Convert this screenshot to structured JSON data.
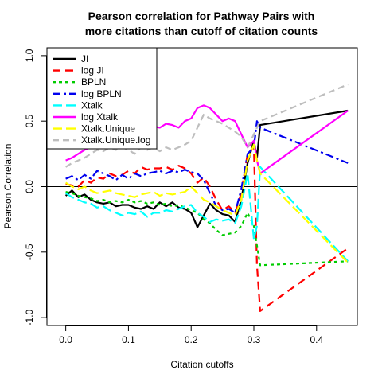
{
  "chart_data": {
    "type": "line",
    "title": [
      "Pearson correlation for Pathway Pairs with",
      "more citations than cutoff of citation counts"
    ],
    "xlabel": "Citation cutoffs",
    "ylabel": "Pearson Correlation",
    "xlim": [
      -0.03,
      0.465
    ],
    "ylim": [
      -1.06,
      1.06
    ],
    "xticks": [
      0.0,
      0.1,
      0.2,
      0.3,
      0.4
    ],
    "xtick_labels": [
      "0.0",
      "0.1",
      "0.2",
      "0.3",
      "0.4"
    ],
    "yticks": [
      -1.0,
      -0.5,
      0.0,
      0.5,
      1.0
    ],
    "ytick_labels": [
      "-1.0",
      "-0.5",
      "0.0",
      "0.5",
      "1.0"
    ],
    "hline": 0,
    "legend_position": "top-left",
    "series": [
      {
        "name": "JI",
        "color": "#000000",
        "dash": "solid",
        "width": 2.2,
        "x": [
          0.0,
          0.01,
          0.02,
          0.03,
          0.04,
          0.05,
          0.06,
          0.07,
          0.08,
          0.09,
          0.1,
          0.11,
          0.12,
          0.13,
          0.14,
          0.15,
          0.16,
          0.17,
          0.18,
          0.19,
          0.2,
          0.21,
          0.22,
          0.23,
          0.24,
          0.25,
          0.26,
          0.27,
          0.28,
          0.29,
          0.3,
          0.305,
          0.31,
          0.45
        ],
        "y": [
          -0.07,
          -0.03,
          -0.08,
          -0.06,
          -0.1,
          -0.12,
          -0.13,
          -0.12,
          -0.15,
          -0.14,
          -0.14,
          -0.16,
          -0.17,
          -0.15,
          -0.17,
          -0.12,
          -0.15,
          -0.12,
          -0.16,
          -0.17,
          -0.2,
          -0.31,
          -0.22,
          -0.13,
          -0.18,
          -0.21,
          -0.22,
          -0.27,
          -0.1,
          0.18,
          0.35,
          0.22,
          0.47,
          0.58
        ]
      },
      {
        "name": "log JI",
        "color": "#ff0000",
        "dash": "10,6",
        "width": 2.2,
        "x": [
          0.0,
          0.01,
          0.02,
          0.03,
          0.04,
          0.05,
          0.06,
          0.07,
          0.08,
          0.09,
          0.1,
          0.11,
          0.12,
          0.13,
          0.14,
          0.15,
          0.16,
          0.17,
          0.18,
          0.19,
          0.2,
          0.21,
          0.22,
          0.23,
          0.24,
          0.25,
          0.26,
          0.27,
          0.28,
          0.29,
          0.3,
          0.305,
          0.31,
          0.45
        ],
        "y": [
          0.02,
          0.01,
          0.0,
          0.05,
          0.03,
          0.07,
          0.06,
          0.1,
          0.08,
          0.09,
          0.12,
          0.1,
          0.15,
          0.13,
          0.14,
          0.14,
          0.15,
          0.13,
          0.16,
          0.14,
          0.1,
          0.03,
          0.07,
          0.0,
          -0.1,
          -0.18,
          -0.15,
          -0.2,
          -0.05,
          0.25,
          0.3,
          -0.6,
          -0.95,
          -0.47
        ]
      },
      {
        "name": "BPLN",
        "color": "#00cc00",
        "dash": "4,4",
        "width": 2.2,
        "x": [
          0.0,
          0.01,
          0.02,
          0.03,
          0.04,
          0.05,
          0.06,
          0.07,
          0.08,
          0.09,
          0.1,
          0.11,
          0.12,
          0.13,
          0.14,
          0.15,
          0.16,
          0.17,
          0.18,
          0.19,
          0.2,
          0.21,
          0.22,
          0.23,
          0.24,
          0.25,
          0.26,
          0.27,
          0.28,
          0.29,
          0.3,
          0.305,
          0.31,
          0.45
        ],
        "y": [
          -0.04,
          -0.05,
          -0.07,
          -0.08,
          -0.09,
          -0.11,
          -0.1,
          -0.12,
          -0.11,
          -0.12,
          -0.1,
          -0.12,
          -0.11,
          -0.13,
          -0.12,
          -0.14,
          -0.13,
          -0.15,
          -0.14,
          -0.16,
          -0.18,
          -0.2,
          -0.25,
          -0.28,
          -0.33,
          -0.37,
          -0.36,
          -0.35,
          -0.3,
          -0.2,
          -0.3,
          -0.45,
          -0.6,
          -0.57
        ]
      },
      {
        "name": "log BPLN",
        "color": "#0000ee",
        "dash": "10,4,3,4",
        "width": 2.2,
        "x": [
          0.0,
          0.01,
          0.02,
          0.03,
          0.04,
          0.05,
          0.06,
          0.07,
          0.08,
          0.09,
          0.1,
          0.11,
          0.12,
          0.13,
          0.14,
          0.15,
          0.16,
          0.17,
          0.18,
          0.19,
          0.2,
          0.21,
          0.22,
          0.23,
          0.24,
          0.25,
          0.26,
          0.27,
          0.28,
          0.29,
          0.3,
          0.305,
          0.31,
          0.45
        ],
        "y": [
          0.06,
          0.08,
          0.05,
          0.09,
          0.06,
          0.12,
          0.1,
          0.08,
          0.05,
          0.09,
          0.06,
          0.1,
          0.08,
          0.1,
          0.11,
          0.12,
          0.1,
          0.12,
          0.11,
          0.13,
          0.11,
          0.1,
          0.05,
          -0.05,
          -0.15,
          -0.18,
          -0.17,
          -0.2,
          -0.02,
          0.25,
          0.3,
          0.5,
          0.45,
          0.18
        ]
      },
      {
        "name": "Xtalk",
        "color": "#00ffff",
        "dash": "12,5",
        "width": 2.2,
        "x": [
          0.0,
          0.01,
          0.02,
          0.03,
          0.04,
          0.05,
          0.06,
          0.07,
          0.08,
          0.09,
          0.1,
          0.11,
          0.12,
          0.13,
          0.14,
          0.15,
          0.16,
          0.17,
          0.18,
          0.19,
          0.2,
          0.21,
          0.22,
          0.23,
          0.24,
          0.25,
          0.26,
          0.27,
          0.28,
          0.29,
          0.3,
          0.305,
          0.31,
          0.45
        ],
        "y": [
          -0.05,
          -0.08,
          -0.1,
          -0.12,
          -0.13,
          -0.16,
          -0.15,
          -0.18,
          -0.2,
          -0.22,
          -0.2,
          -0.21,
          -0.19,
          -0.23,
          -0.2,
          -0.2,
          -0.18,
          -0.19,
          -0.17,
          -0.15,
          -0.14,
          -0.2,
          -0.23,
          -0.27,
          -0.25,
          -0.26,
          -0.25,
          -0.28,
          -0.15,
          0.1,
          -0.4,
          -0.3,
          0.15,
          -0.57
        ]
      },
      {
        "name": "log Xtalk",
        "color": "#ff00ff",
        "dash": "solid",
        "width": 2.2,
        "x": [
          0.0,
          0.01,
          0.02,
          0.03,
          0.04,
          0.05,
          0.06,
          0.07,
          0.08,
          0.09,
          0.1,
          0.11,
          0.12,
          0.13,
          0.14,
          0.15,
          0.16,
          0.17,
          0.18,
          0.19,
          0.2,
          0.21,
          0.22,
          0.23,
          0.24,
          0.25,
          0.26,
          0.27,
          0.28,
          0.29,
          0.3,
          0.305,
          0.31,
          0.45
        ],
        "y": [
          0.2,
          0.22,
          0.25,
          0.28,
          0.3,
          0.33,
          0.35,
          0.38,
          0.4,
          0.42,
          0.44,
          0.45,
          0.4,
          0.42,
          0.46,
          0.45,
          0.48,
          0.47,
          0.45,
          0.5,
          0.52,
          0.6,
          0.62,
          0.6,
          0.55,
          0.5,
          0.52,
          0.5,
          0.4,
          0.3,
          0.35,
          0.2,
          0.1,
          0.58
        ]
      },
      {
        "name": "Xtalk.Unique",
        "color": "#ffff00",
        "dash": "12,5",
        "width": 2.2,
        "x": [
          0.0,
          0.01,
          0.02,
          0.03,
          0.04,
          0.05,
          0.06,
          0.07,
          0.08,
          0.09,
          0.1,
          0.11,
          0.12,
          0.13,
          0.14,
          0.15,
          0.16,
          0.17,
          0.18,
          0.19,
          0.2,
          0.21,
          0.22,
          0.23,
          0.24,
          0.25,
          0.26,
          0.27,
          0.28,
          0.29,
          0.3,
          0.305,
          0.31,
          0.45
        ],
        "y": [
          0.03,
          0.0,
          -0.02,
          0.0,
          -0.03,
          -0.05,
          -0.04,
          -0.03,
          -0.05,
          -0.06,
          -0.07,
          -0.08,
          -0.06,
          -0.05,
          -0.04,
          -0.07,
          -0.05,
          -0.06,
          -0.05,
          -0.04,
          0.0,
          -0.05,
          -0.1,
          -0.12,
          -0.15,
          -0.18,
          -0.2,
          -0.22,
          -0.1,
          0.2,
          0.32,
          0.2,
          0.1,
          -0.58
        ]
      },
      {
        "name": "Xtalk.Unique.log",
        "color": "#bebebe",
        "dash": "8,5",
        "width": 2.2,
        "x": [
          0.0,
          0.01,
          0.02,
          0.03,
          0.04,
          0.05,
          0.06,
          0.07,
          0.08,
          0.09,
          0.1,
          0.11,
          0.12,
          0.13,
          0.14,
          0.15,
          0.16,
          0.17,
          0.18,
          0.19,
          0.2,
          0.21,
          0.22,
          0.23,
          0.24,
          0.25,
          0.26,
          0.27,
          0.28,
          0.29,
          0.3,
          0.305,
          0.31,
          0.45
        ],
        "y": [
          0.15,
          0.18,
          0.2,
          0.22,
          0.25,
          0.28,
          0.27,
          0.3,
          0.28,
          0.3,
          0.28,
          0.25,
          0.3,
          0.28,
          0.3,
          0.27,
          0.3,
          0.28,
          0.3,
          0.32,
          0.35,
          0.45,
          0.55,
          0.52,
          0.5,
          0.48,
          0.45,
          0.42,
          0.38,
          0.3,
          0.4,
          0.45,
          0.5,
          0.78
        ]
      }
    ]
  }
}
